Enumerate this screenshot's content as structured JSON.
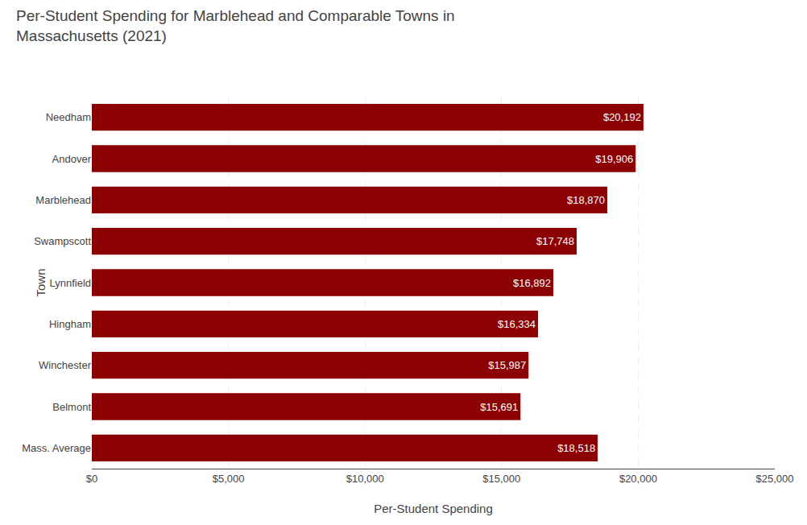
{
  "chart_data": {
    "type": "bar",
    "orientation": "horizontal",
    "title": "Per-Student Spending for Marblehead and Comparable Towns in\nMassachusetts (2021)",
    "xlabel": "Per-Student Spending",
    "ylabel": "Town",
    "categories": [
      "Mass. Average",
      "Belmont",
      "Winchester",
      "Hingham",
      "Lynnfield",
      "Swampscott",
      "Marblehead",
      "Andover",
      "Needham"
    ],
    "values": [
      18518,
      15691,
      15987,
      16334,
      16892,
      17748,
      18870,
      19906,
      20192
    ],
    "value_labels": [
      "$18,518",
      "$15,691",
      "$15,987",
      "$16,334",
      "$16,892",
      "$17,748",
      "$18,870",
      "$19,906",
      "$20,192"
    ],
    "data_labels": true,
    "color": "#8B0000",
    "xlim": [
      0,
      25000
    ],
    "xticks": [
      {
        "value": 0,
        "label": "$0"
      },
      {
        "value": 5000,
        "label": "$5,000"
      },
      {
        "value": 10000,
        "label": "$10,000"
      },
      {
        "value": 15000,
        "label": "$15,000"
      },
      {
        "value": 20000,
        "label": "$20,000"
      },
      {
        "value": 25000,
        "label": "$25,000"
      }
    ],
    "grid": true
  }
}
